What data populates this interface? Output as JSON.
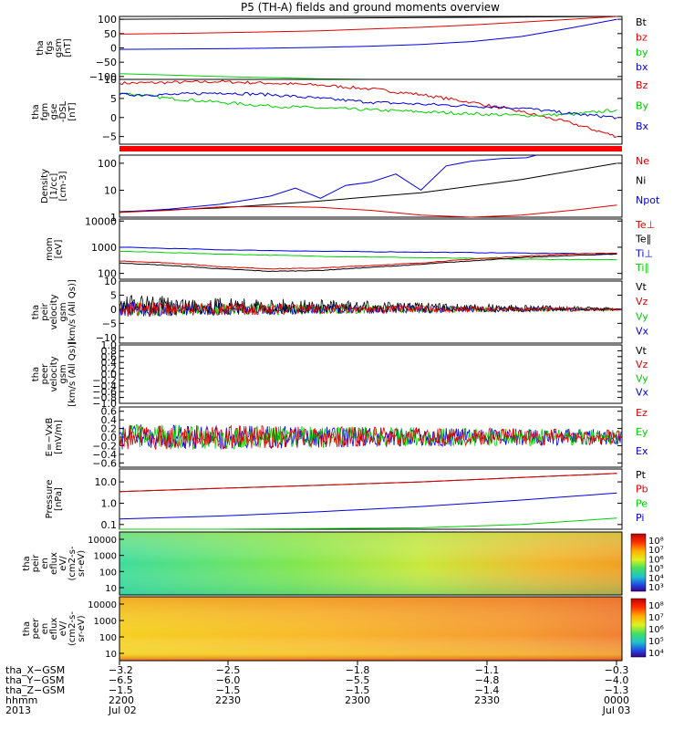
{
  "title": "P5 (TH-A) fields and ground moments overview",
  "colors": {
    "black": "#000000",
    "red": "#e00000",
    "green": "#00d000",
    "blue": "#0000e0"
  },
  "chart_data": [
    {
      "id": "fgs",
      "type": "line",
      "ylabel": [
        "tha",
        "fgs",
        "gsm",
        "[nT]"
      ],
      "yticks": [
        "100",
        "50",
        "0",
        "−50",
        "−100"
      ],
      "ylim": [
        -110,
        110
      ],
      "legend": [
        "Bt",
        "bz",
        "by",
        "bx"
      ],
      "legend_colors": [
        "#000000",
        "#e00000",
        "#00d000",
        "#0000e0"
      ],
      "series": [
        {
          "name": "Bt",
          "color": "#000000",
          "x": [
            0,
            2,
            4,
            6,
            8,
            9.9
          ],
          "y": [
            100,
            102,
            104,
            106,
            108,
            110
          ]
        },
        {
          "name": "bz",
          "color": "#e00000",
          "x": [
            0,
            1,
            2,
            3,
            4,
            5,
            6,
            7,
            8,
            9,
            9.9
          ],
          "y": [
            48,
            50,
            53,
            56,
            60,
            66,
            72,
            80,
            90,
            100,
            110
          ]
        },
        {
          "name": "by",
          "color": "#00d000",
          "x": [
            0,
            1,
            2,
            3,
            4,
            5,
            6,
            7,
            8,
            9,
            9.9
          ],
          "y": [
            -90,
            -95,
            -100,
            -104,
            -108,
            -112,
            -116,
            -120,
            -125,
            -130,
            -135
          ]
        },
        {
          "name": "bx",
          "color": "#0000e0",
          "x": [
            0,
            1,
            2,
            3,
            4,
            5,
            6,
            7,
            8,
            9,
            9.9
          ],
          "y": [
            -5,
            -4,
            -3,
            -1,
            2,
            6,
            12,
            22,
            40,
            70,
            100
          ]
        }
      ]
    },
    {
      "id": "fgm",
      "type": "line",
      "ylabel": [
        "tha",
        "fgm",
        "gse",
        "-DSL",
        "[nT]"
      ],
      "yticks": [
        "10",
        "5",
        "0",
        "−5"
      ],
      "ylim": [
        -7,
        10
      ],
      "legend": [
        "Bz",
        "By",
        "Bx"
      ],
      "legend_colors": [
        "#e00000",
        "#00d000",
        "#0000e0"
      ],
      "series": [
        {
          "name": "Bz",
          "color": "#e00000",
          "x": [
            0,
            1,
            2,
            3,
            4,
            5,
            6,
            7,
            8,
            9,
            9.9
          ],
          "y": [
            9,
            9.2,
            9.4,
            9,
            8.5,
            7.5,
            6,
            4,
            1.5,
            -1.5,
            -5
          ]
        },
        {
          "name": "By",
          "color": "#00d000",
          "x": [
            0,
            1,
            2,
            3,
            4,
            5,
            6,
            7,
            8,
            9,
            9.9
          ],
          "y": [
            6.5,
            5,
            4,
            3,
            2.5,
            2,
            1.5,
            1,
            0.5,
            0.8,
            2
          ]
        },
        {
          "name": "Bx",
          "color": "#0000e0",
          "x": [
            0,
            1,
            2,
            3,
            4,
            5,
            6,
            7,
            8,
            9,
            9.9
          ],
          "y": [
            6,
            6,
            6.5,
            6,
            5,
            4,
            3.5,
            3,
            2.5,
            1,
            0
          ]
        }
      ]
    },
    {
      "id": "bar",
      "type": "bar",
      "color": "#ff0000"
    },
    {
      "id": "density",
      "type": "line",
      "log": true,
      "ylabel": [
        "Density",
        "[1/cc]",
        "[cm-3]"
      ],
      "yticks": [
        "100",
        "10",
        "1"
      ],
      "ylim": [
        1,
        200
      ],
      "legend": [
        "Ne",
        "Ni",
        "Npot"
      ],
      "legend_colors": [
        "#e00000",
        "#000000",
        "#0000e0"
      ],
      "series": [
        {
          "name": "Ni",
          "color": "#000000",
          "x": [
            0,
            2,
            4,
            6,
            8,
            9.9
          ],
          "y": [
            1.6,
            2.2,
            4,
            8,
            25,
            100
          ]
        },
        {
          "name": "Npot",
          "color": "#0000e0",
          "x": [
            0,
            1,
            2,
            3,
            3.5,
            4,
            4.5,
            5,
            5.5,
            6,
            6.5,
            7,
            7.6,
            8.1,
            8.3
          ],
          "y": [
            1.5,
            2,
            3,
            6,
            12,
            5,
            15,
            20,
            40,
            10,
            80,
            120,
            150,
            160,
            200
          ]
        },
        {
          "name": "Ne",
          "color": "#e00000",
          "x": [
            0,
            1,
            2,
            3,
            4,
            5,
            6,
            7,
            8,
            9,
            9.9
          ],
          "y": [
            1.5,
            1.8,
            2.4,
            2.5,
            2.3,
            1.8,
            1.2,
            1,
            1.2,
            1.8,
            2.8
          ]
        }
      ]
    },
    {
      "id": "mom",
      "type": "line",
      "log": true,
      "ylabel": [
        "mom",
        "[eV]"
      ],
      "yticks": [
        "10000",
        "1000",
        "100"
      ],
      "ylim": [
        60,
        12000
      ],
      "legend": [
        "Te⊥",
        "Te∥",
        "Ti⊥",
        "Ti∥"
      ],
      "legend_colors": [
        "#e00000",
        "#000000",
        "#0000e0",
        "#00d000"
      ],
      "series": [
        {
          "name": "Ti⊥",
          "color": "#0000e0",
          "x": [
            0,
            2,
            4,
            6,
            8,
            9.9
          ],
          "y": [
            1000,
            800,
            700,
            650,
            600,
            550
          ]
        },
        {
          "name": "Ti∥",
          "color": "#00d000",
          "x": [
            0,
            2,
            4,
            6,
            8,
            9.9
          ],
          "y": [
            700,
            550,
            450,
            400,
            350,
            330
          ]
        },
        {
          "name": "Te⊥",
          "color": "#e00000",
          "x": [
            0,
            1,
            2,
            3,
            4,
            5,
            6,
            7,
            8,
            9,
            9.9
          ],
          "y": [
            300,
            250,
            180,
            150,
            160,
            200,
            250,
            350,
            450,
            550,
            600
          ]
        },
        {
          "name": "Te∥",
          "color": "#000000",
          "x": [
            0,
            1,
            2,
            3,
            4,
            5,
            6,
            7,
            8,
            9,
            9.9
          ],
          "y": [
            250,
            200,
            150,
            120,
            130,
            170,
            220,
            300,
            400,
            480,
            550
          ]
        }
      ]
    },
    {
      "id": "peir",
      "type": "noise",
      "ylabel": [
        "tha",
        "peir",
        "velocity",
        "gsm",
        "[km/s (All Qs)]"
      ],
      "yticks": [
        "10",
        "5",
        "0",
        "−5",
        "−10"
      ],
      "ylim": [
        -12,
        10
      ],
      "legend": [
        "Vt",
        "Vz",
        "Vy",
        "Vx"
      ],
      "legend_colors": [
        "#000000",
        "#e00000",
        "#00d000",
        "#0000e0"
      ]
    },
    {
      "id": "peer",
      "type": "empty",
      "ylabel": [
        "tha",
        "peer",
        "velocity",
        "gsm",
        "[km/s (All Qs)]"
      ],
      "yticks": [
        "1.0",
        "0.8",
        "0.6",
        "0.4",
        "0.2",
        "0.0",
        "−0.2",
        "−0.4",
        "−0.6",
        "−0.8",
        "−1.0"
      ],
      "ylim": [
        -1,
        1
      ],
      "legend": [
        "Vt",
        "Vz",
        "Vy",
        "Vx"
      ],
      "legend_colors": [
        "#000000",
        "#e00000",
        "#00d000",
        "#0000e0"
      ]
    },
    {
      "id": "efield",
      "type": "noise2",
      "ylabel": [
        "E=−VxB",
        "[mV/m]"
      ],
      "yticks": [
        "0.6",
        "0.4",
        "0.2",
        "0.0",
        "−0.2",
        "−0.4",
        "−0.6"
      ],
      "ylim": [
        -0.7,
        0.7
      ],
      "legend": [
        "Ez",
        "Ey",
        "Ex"
      ],
      "legend_colors": [
        "#e00000",
        "#00d000",
        "#0000e0"
      ]
    },
    {
      "id": "pressure",
      "type": "line",
      "log": true,
      "ylabel": [
        "Pressure",
        "[nPa]"
      ],
      "yticks": [
        "10.0",
        "1.0",
        "0.1"
      ],
      "ylim": [
        0.06,
        40
      ],
      "legend": [
        "Pt",
        "Pb",
        "Pe",
        "Pi"
      ],
      "legend_colors": [
        "#000000",
        "#e00000",
        "#00d000",
        "#0000e0"
      ],
      "series": [
        {
          "name": "Pt",
          "color": "#000000",
          "x": [
            0,
            2,
            4,
            6,
            8,
            9.9
          ],
          "y": [
            3.5,
            5,
            7,
            10,
            16,
            25
          ]
        },
        {
          "name": "Pb",
          "color": "#e00000",
          "x": [
            0,
            2,
            4,
            6,
            8,
            9.9
          ],
          "y": [
            3.5,
            5,
            7,
            10,
            16,
            25
          ]
        },
        {
          "name": "Pi",
          "color": "#0000e0",
          "x": [
            0,
            2,
            4,
            6,
            8,
            9.9
          ],
          "y": [
            0.18,
            0.25,
            0.4,
            0.7,
            1.4,
            3
          ]
        },
        {
          "name": "Pe",
          "color": "#00d000",
          "x": [
            0,
            2,
            4,
            6,
            8,
            9.9
          ],
          "y": [
            0.06,
            0.06,
            0.065,
            0.07,
            0.1,
            0.2
          ]
        }
      ]
    },
    {
      "id": "spec1",
      "type": "heatmap",
      "ylabel": [
        "tha",
        "peir",
        "en",
        "eflux",
        "eV/",
        "(cm2-s-",
        "sr-eV)"
      ],
      "yticks": [
        "10000",
        "1000",
        "100",
        "10"
      ],
      "cbar": [
        "10⁸",
        "10⁷",
        "10⁶",
        "10⁵",
        "10⁴",
        "10³"
      ],
      "cbar_note": "log colorbar 10^3 – 10^8"
    },
    {
      "id": "spec2",
      "type": "heatmap",
      "ylabel": [
        "tha",
        "peer",
        "en",
        "eflux",
        "eV/",
        "(cm2-s-",
        "sr-eV)"
      ],
      "yticks": [
        "10000",
        "1000",
        "100",
        "10"
      ],
      "cbar": [
        "10⁸",
        "10⁷",
        "10⁶",
        "10⁵",
        "10⁴"
      ],
      "cbar_note": "log colorbar 10^4 – 10^8"
    }
  ],
  "footer": {
    "rows": [
      {
        "label": "tha_X−GSM",
        "values": [
          "−3.2",
          "−2.5",
          "−1.8",
          "−1.1",
          "−0.3"
        ]
      },
      {
        "label": "tha_Y−GSM",
        "values": [
          "−6.5",
          "−6.0",
          "−5.5",
          "−4.8",
          "−4.0"
        ]
      },
      {
        "label": "tha_Z−GSM",
        "values": [
          "−1.5",
          "−1.5",
          "−1.5",
          "−1.4",
          "−1.3"
        ]
      },
      {
        "label": "hhmm",
        "values": [
          "2200",
          "2230",
          "2300",
          "2330",
          "0000"
        ]
      },
      {
        "label": "2013",
        "values": [
          "Jul 02",
          "",
          "",
          "",
          "Jul 03"
        ]
      }
    ]
  }
}
